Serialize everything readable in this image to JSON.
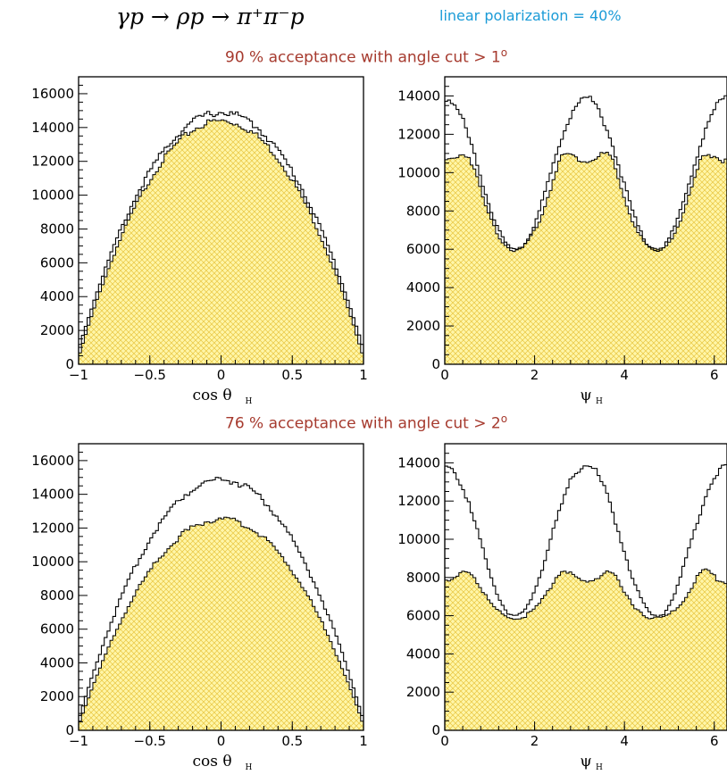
{
  "header": {
    "reaction": "γp → ρp → π⁺π⁻p",
    "polarization": "linear polarization = 40%"
  },
  "captions": [
    {
      "text": "90 % acceptance with angle cut > 1",
      "sup": "o"
    },
    {
      "text": "76 % acceptance with angle cut > 2",
      "sup": "o"
    }
  ],
  "colors": {
    "fill": "#fff6a8",
    "hatch": "#e8c640",
    "line": "#000000"
  },
  "chart_data": [
    {
      "type": "histogram",
      "xlabel": "cos θ",
      "xlabel_sub": "H",
      "xlim": [
        -1,
        1
      ],
      "ylim": [
        0,
        17000
      ],
      "xticks": [
        -1,
        -0.5,
        0,
        0.5,
        1
      ],
      "xtick_labels": [
        "−1",
        "−0.5",
        "0",
        "0.5",
        "1"
      ],
      "yticks": [
        0,
        2000,
        4000,
        6000,
        8000,
        10000,
        12000,
        14000,
        16000
      ],
      "ytick_labels": [
        "0",
        "2000",
        "4000",
        "6000",
        "8000",
        "10000",
        "12000",
        "14000",
        "16000"
      ],
      "bins": 100,
      "series": [
        {
          "style": "outline",
          "shape": "parabola",
          "peak": 15000,
          "edge": 900
        },
        {
          "style": "filled",
          "shape": "parabola",
          "peak": 14500,
          "edge": 400
        }
      ]
    },
    {
      "type": "histogram",
      "xlabel": "ψ",
      "xlabel_sub": "H",
      "xlim": [
        0,
        6.2832
      ],
      "ylim": [
        0,
        15000
      ],
      "xticks": [
        0,
        2,
        4,
        6
      ],
      "xtick_labels": [
        "0",
        "2",
        "4",
        "6"
      ],
      "yticks": [
        0,
        2000,
        4000,
        6000,
        8000,
        10000,
        12000,
        14000
      ],
      "ytick_labels": [
        "0",
        "2000",
        "4000",
        "6000",
        "8000",
        "10000",
        "12000",
        "14000"
      ],
      "bins": 100,
      "series": [
        {
          "style": "outline",
          "shape": "cos2",
          "base": 6000,
          "amp": 8000
        },
        {
          "style": "filled",
          "shape": "cos2-dip",
          "base": 6000,
          "amp": 6000,
          "dip": 1300
        }
      ]
    },
    {
      "type": "histogram",
      "xlabel": "cos θ",
      "xlabel_sub": "H",
      "xlim": [
        -1,
        1
      ],
      "ylim": [
        0,
        17000
      ],
      "xticks": [
        -1,
        -0.5,
        0,
        0.5,
        1
      ],
      "xtick_labels": [
        "−1",
        "−0.5",
        "0",
        "0.5",
        "1"
      ],
      "yticks": [
        0,
        2000,
        4000,
        6000,
        8000,
        10000,
        12000,
        14000,
        16000
      ],
      "ytick_labels": [
        "0",
        "2000",
        "4000",
        "6000",
        "8000",
        "10000",
        "12000",
        "14000",
        "16000"
      ],
      "bins": 100,
      "series": [
        {
          "style": "outline",
          "shape": "parabola",
          "peak": 15000,
          "edge": 600
        },
        {
          "style": "filled",
          "shape": "parabola",
          "peak": 12600,
          "edge": 300
        }
      ]
    },
    {
      "type": "histogram",
      "xlabel": "ψ",
      "xlabel_sub": "H",
      "xlim": [
        0,
        6.2832
      ],
      "ylim": [
        0,
        15000
      ],
      "xticks": [
        0,
        2,
        4,
        6
      ],
      "xtick_labels": [
        "0",
        "2",
        "4",
        "6"
      ],
      "yticks": [
        0,
        2000,
        4000,
        6000,
        8000,
        10000,
        12000,
        14000
      ],
      "ytick_labels": [
        "0",
        "2000",
        "4000",
        "6000",
        "8000",
        "10000",
        "12000",
        "14000"
      ],
      "bins": 100,
      "series": [
        {
          "style": "outline",
          "shape": "cos2",
          "base": 6000,
          "amp": 8000
        },
        {
          "style": "filled",
          "shape": "cos2-dip",
          "base": 5900,
          "amp": 2900,
          "dip": 1000
        }
      ]
    }
  ]
}
